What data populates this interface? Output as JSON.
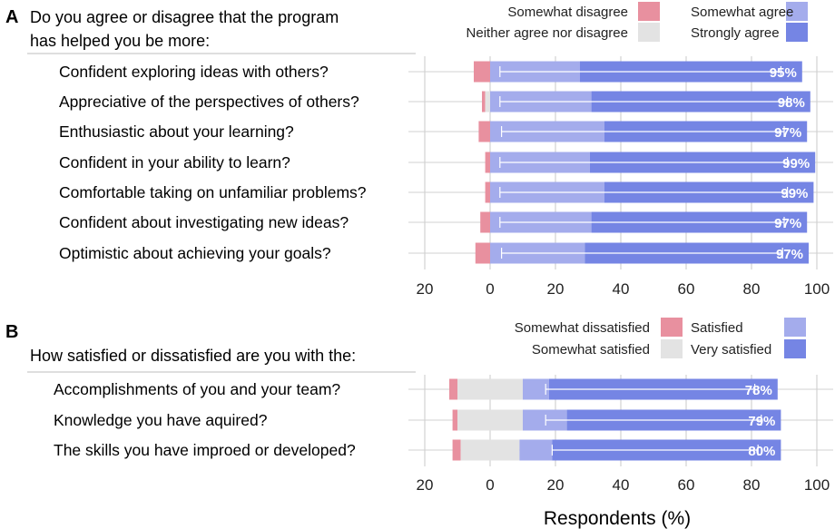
{
  "chart_data": [
    {
      "type": "bar",
      "panel_label": "A",
      "title_lines": [
        "Do you agree or disagree that the program",
        "has helped you be more:"
      ],
      "legend": [
        {
          "name": "Somewhat disagree",
          "color": "#e8909f"
        },
        {
          "name": "Neither agree nor disagree",
          "color": "#e3e3e3"
        },
        {
          "name": "Somewhat agree",
          "color": "#a4acec"
        },
        {
          "name": "Strongly agree",
          "color": "#7585e4"
        }
      ],
      "categories": [
        "Confident exploring ideas with others?",
        "Appreciative of the perspectives of others?",
        "Enthusiastic about your learning?",
        "Confident in your ability to learn?",
        "Comfortable taking on unfamiliar problems?",
        "Confident about investigating new ideas?",
        "Optimistic about achieving your goals?"
      ],
      "series": [
        {
          "name": "Somewhat disagree",
          "values": [
            -5,
            -1,
            -3.5,
            -1.5,
            -1.5,
            -3,
            -4.5
          ]
        },
        {
          "name": "Neither agree nor disagree",
          "values": [
            0,
            -1.5,
            0,
            0,
            0,
            0,
            0
          ]
        },
        {
          "name": "Somewhat agree",
          "values": [
            27.5,
            31,
            35,
            30.5,
            35,
            31,
            29
          ]
        },
        {
          "name": "Strongly agree",
          "values": [
            68,
            67,
            62,
            69,
            64,
            66,
            68.5
          ]
        }
      ],
      "totals": [
        "95%",
        "98%",
        "97%",
        "99%",
        "99%",
        "97%",
        "97%"
      ],
      "error_low": [
        3,
        3,
        3.5,
        3,
        3,
        3,
        3.5
      ],
      "error_high": [
        89,
        91,
        90,
        91,
        91,
        90,
        89.5
      ],
      "x_ticks": [
        -20,
        0,
        20,
        40,
        60,
        80,
        100
      ],
      "x_tick_labels": [
        "20",
        "0",
        "20",
        "40",
        "60",
        "80",
        "100"
      ],
      "xlim": [
        -23,
        102
      ]
    },
    {
      "type": "bar",
      "panel_label": "B",
      "title_lines": [
        "How satisfied or dissatisfied are you with the:"
      ],
      "legend": [
        {
          "name": "Somewhat dissatisfied",
          "color": "#e8909f"
        },
        {
          "name": "Somewhat satisfied",
          "color": "#e3e3e3"
        },
        {
          "name": "Satisfied",
          "color": "#a4acec"
        },
        {
          "name": "Very satisfied",
          "color": "#7585e4"
        }
      ],
      "categories": [
        "Accomplishments of you and your team?",
        "Knowledge you have aquired?",
        "The skills you have improed or developed?"
      ],
      "series": [
        {
          "name": "Somewhat dissatisfied",
          "values": [
            -2.5,
            -1.5,
            -2.5
          ]
        },
        {
          "name": "Somewhat satisfied",
          "values": [
            10,
            10,
            9
          ]
        },
        {
          "name": "Satisfied",
          "values": [
            8,
            13.5,
            10
          ]
        },
        {
          "name": "Very satisfied",
          "values": [
            70,
            65.5,
            70
          ]
        }
      ],
      "neutral_left": [
        -10,
        -10,
        -9
      ],
      "totals": [
        "78%",
        "79%",
        "80%"
      ],
      "error_low": [
        17,
        17,
        19
      ],
      "error_high": [
        81,
        83,
        82
      ],
      "x_ticks": [
        -20,
        0,
        20,
        40,
        60,
        80,
        100
      ],
      "x_tick_labels": [
        "20",
        "0",
        "20",
        "40",
        "60",
        "80",
        "100"
      ],
      "xlim": [
        -23,
        102
      ],
      "xlabel": "Respondents (%)"
    }
  ]
}
